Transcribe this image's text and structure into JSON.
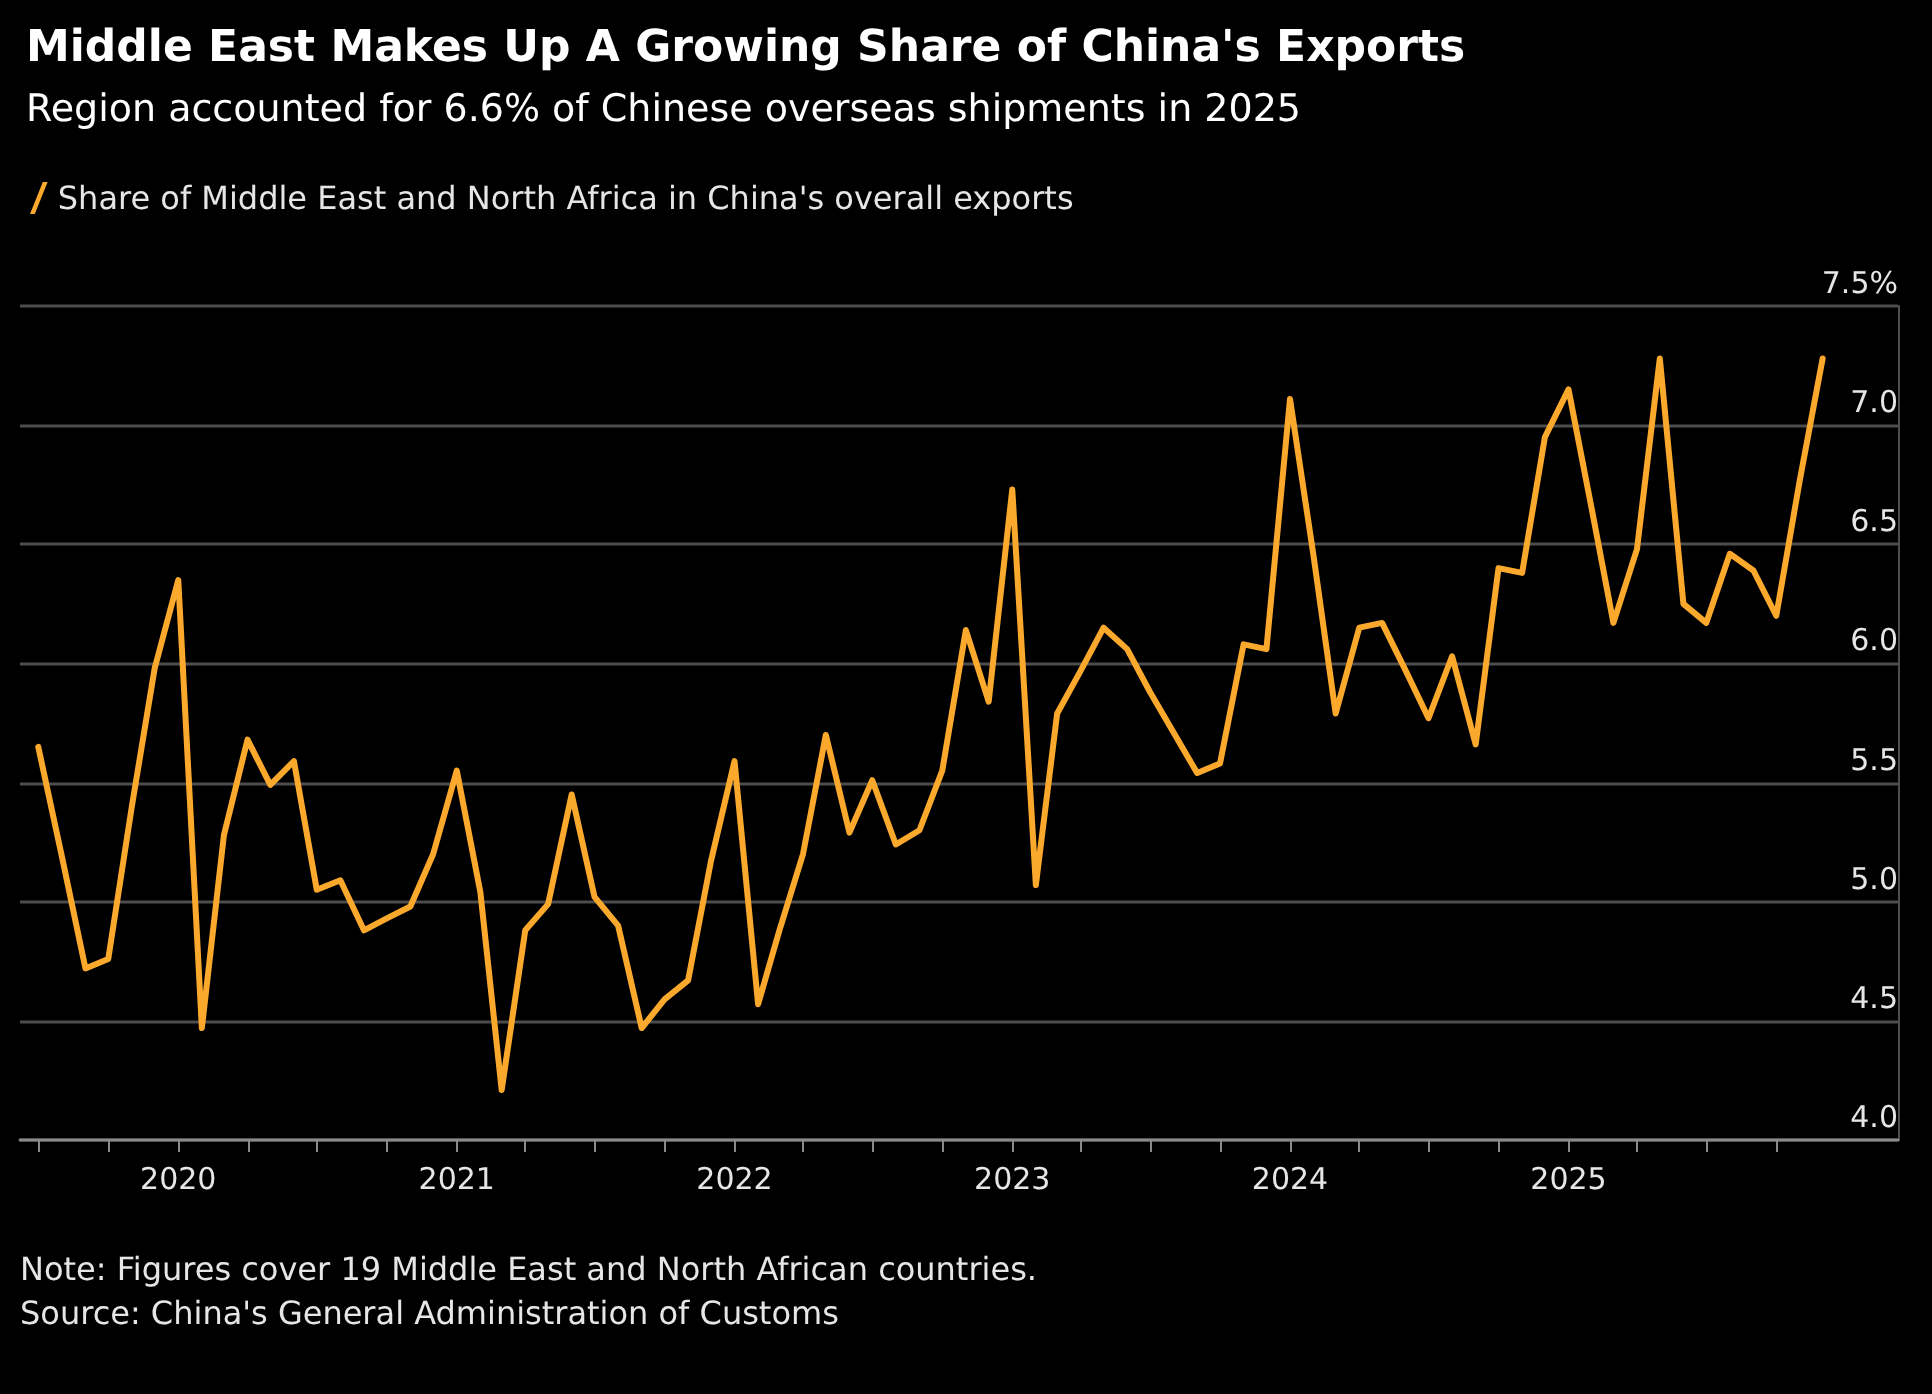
{
  "chart_data": {
    "type": "line",
    "title": "Middle East Makes Up A Growing Share of China's Exports",
    "subtitle": "Region accounted for 6.6% of Chinese overseas shipments in 2025",
    "x": [
      "2019-07",
      "2019-08",
      "2019-09",
      "2019-10",
      "2019-11",
      "2019-12",
      "2020-01",
      "2020-02",
      "2020-03",
      "2020-04",
      "2020-05",
      "2020-06",
      "2020-07",
      "2020-08",
      "2020-09",
      "2020-10",
      "2020-11",
      "2020-12",
      "2021-01",
      "2021-02",
      "2021-03",
      "2021-04",
      "2021-05",
      "2021-06",
      "2021-07",
      "2021-08",
      "2021-09",
      "2021-10",
      "2021-11",
      "2021-12",
      "2022-01",
      "2022-02",
      "2022-03",
      "2022-04",
      "2022-05",
      "2022-06",
      "2022-07",
      "2022-08",
      "2022-09",
      "2022-10",
      "2022-11",
      "2022-12",
      "2023-01",
      "2023-02",
      "2023-03",
      "2023-04",
      "2023-05",
      "2023-06",
      "2023-07",
      "2023-08",
      "2023-09",
      "2023-10",
      "2023-11",
      "2023-12",
      "2024-01",
      "2024-02",
      "2024-03",
      "2024-04",
      "2024-05",
      "2024-06",
      "2024-07",
      "2024-08",
      "2024-09",
      "2024-10",
      "2024-11",
      "2024-12",
      "2025-01",
      "2025-02",
      "2025-03",
      "2025-04",
      "2025-05",
      "2025-06",
      "2025-07",
      "2025-08",
      "2025-09",
      "2025-10",
      "2025-11",
      "2025-12"
    ],
    "series": [
      {
        "name": "Share of Middle East and North Africa in China's overall exports",
        "color": "#fba92c",
        "values": [
          5.65,
          5.19,
          4.72,
          4.76,
          5.4,
          5.98,
          6.35,
          4.47,
          5.28,
          5.68,
          5.49,
          5.59,
          5.05,
          5.09,
          4.88,
          4.93,
          4.98,
          5.2,
          5.55,
          5.04,
          4.21,
          4.88,
          4.99,
          5.45,
          5.02,
          4.9,
          4.47,
          4.59,
          4.67,
          5.17,
          5.59,
          4.57,
          4.88,
          5.2,
          5.7,
          5.29,
          5.51,
          5.24,
          5.3,
          5.55,
          6.14,
          5.84,
          6.73,
          5.07,
          5.79,
          5.97,
          6.15,
          6.06,
          5.88,
          5.71,
          5.54,
          5.58,
          6.08,
          6.06,
          7.11,
          6.45,
          5.79,
          6.15,
          6.17,
          5.97,
          5.77,
          6.03,
          5.66,
          6.4,
          6.38,
          6.95,
          7.15,
          6.64,
          6.17,
          6.48,
          7.28,
          6.25,
          6.17,
          6.46,
          6.39,
          6.2,
          6.77,
          7.28
        ]
      }
    ],
    "xlim": [
      "2019-06-07",
      "2026-03-10"
    ],
    "xticks": [
      {
        "value": "2019-07-01",
        "label": null
      },
      {
        "value": "2019-10-01",
        "label": null
      },
      {
        "value": "2020-01-01",
        "label": "2020"
      },
      {
        "value": "2020-04-01",
        "label": null
      },
      {
        "value": "2020-07-01",
        "label": null
      },
      {
        "value": "2020-10-01",
        "label": null
      },
      {
        "value": "2021-01-01",
        "label": "2021"
      },
      {
        "value": "2021-04-01",
        "label": null
      },
      {
        "value": "2021-07-01",
        "label": null
      },
      {
        "value": "2021-10-01",
        "label": null
      },
      {
        "value": "2022-01-01",
        "label": "2022"
      },
      {
        "value": "2022-04-01",
        "label": null
      },
      {
        "value": "2022-07-01",
        "label": null
      },
      {
        "value": "2022-10-01",
        "label": null
      },
      {
        "value": "2023-01-01",
        "label": "2023"
      },
      {
        "value": "2023-04-01",
        "label": null
      },
      {
        "value": "2023-07-01",
        "label": null
      },
      {
        "value": "2023-10-01",
        "label": null
      },
      {
        "value": "2024-01-01",
        "label": "2024"
      },
      {
        "value": "2024-04-01",
        "label": null
      },
      {
        "value": "2024-07-01",
        "label": null
      },
      {
        "value": "2024-10-01",
        "label": null
      },
      {
        "value": "2025-01-01",
        "label": "2025"
      },
      {
        "value": "2025-04-01",
        "label": null
      },
      {
        "value": "2025-07-01",
        "label": null
      },
      {
        "value": "2025-10-01",
        "label": null
      }
    ],
    "ylim": [
      4.0,
      7.5
    ],
    "yticks": [
      {
        "value": 4.0,
        "label": "4.0"
      },
      {
        "value": 4.5,
        "label": "4.5"
      },
      {
        "value": 5.0,
        "label": "5.0"
      },
      {
        "value": 5.5,
        "label": "5.5"
      },
      {
        "value": 6.0,
        "label": "6.0"
      },
      {
        "value": 6.5,
        "label": "6.5"
      },
      {
        "value": 7.0,
        "label": "7.0"
      },
      {
        "value": 7.5,
        "label": "7.5%"
      }
    ],
    "grid": "y",
    "legend": "top left",
    "marker": "none",
    "line_style": "solid",
    "annotations": [
      "Note: Figures cover 19 Middle East and North African countries.",
      "Source: China's General Administration of Customs"
    ]
  }
}
